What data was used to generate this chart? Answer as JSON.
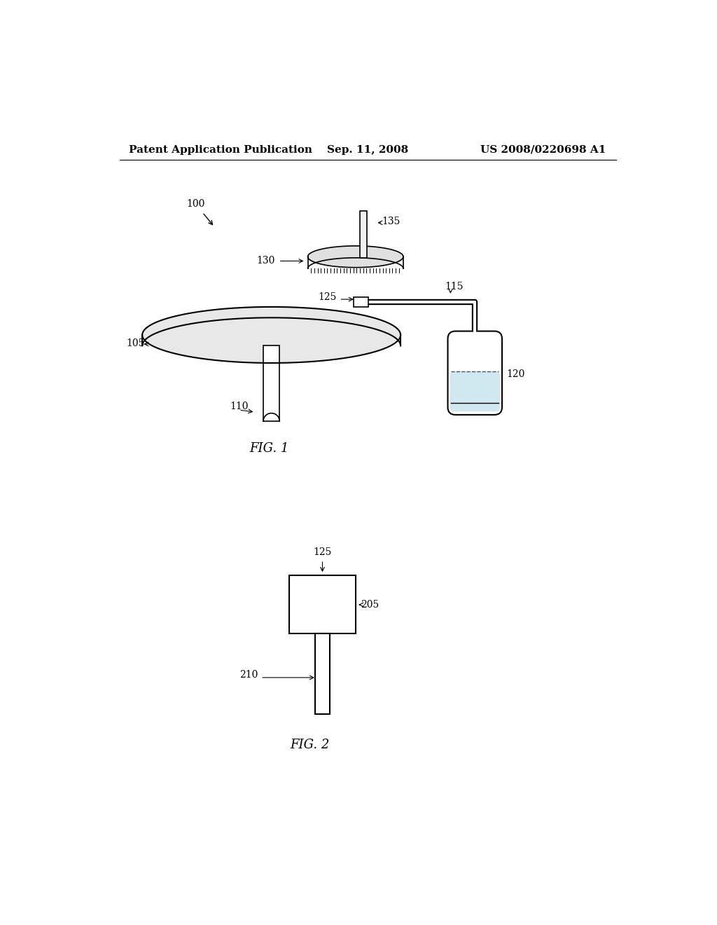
{
  "bg_color": "#ffffff",
  "header_left": "Patent Application Publication",
  "header_center": "Sep. 11, 2008",
  "header_right": "US 2008/0220698 A1",
  "fig1_label": "FIG. 1",
  "fig2_label": "FIG. 2",
  "label_100": "100",
  "label_105": "105",
  "label_110": "110",
  "label_115": "115",
  "label_120": "120",
  "label_125": "125",
  "label_130": "130",
  "label_135": "135",
  "label_205": "205",
  "label_210": "210"
}
